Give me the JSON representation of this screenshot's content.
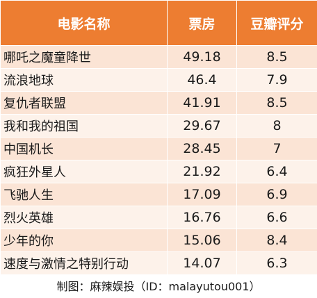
{
  "table": {
    "headers": {
      "name": "电影名称",
      "box_office": "票房",
      "douban_score": "豆瓣评分"
    },
    "rows": [
      {
        "name": "哪吒之魔童降世",
        "box_office": "49.18",
        "douban_score": "8.5"
      },
      {
        "name": "流浪地球",
        "box_office": "46.4",
        "douban_score": "7.9"
      },
      {
        "name": "复仇者联盟",
        "box_office": "41.91",
        "douban_score": "8.5"
      },
      {
        "name": "我和我的祖国",
        "box_office": "29.67",
        "douban_score": "8"
      },
      {
        "name": "中国机长",
        "box_office": "28.45",
        "douban_score": "7"
      },
      {
        "name": "疯狂外星人",
        "box_office": "21.92",
        "douban_score": "6.4"
      },
      {
        "name": "飞驰人生",
        "box_office": "17.09",
        "douban_score": "6.9"
      },
      {
        "name": "烈火英雄",
        "box_office": "16.76",
        "douban_score": "6.6"
      },
      {
        "name": "少年的你",
        "box_office": "15.06",
        "douban_score": "8.4"
      },
      {
        "name": "速度与激情之特别行动",
        "box_office": "14.07",
        "douban_score": "6.3"
      }
    ]
  },
  "footer": {
    "credit": "制图：麻辣娱投（ID：malayutou001）"
  },
  "colors": {
    "header_bg": "#ed7d31",
    "row_odd_bg": "#fbe4d5",
    "row_even_bg": "#fdf2ea"
  }
}
